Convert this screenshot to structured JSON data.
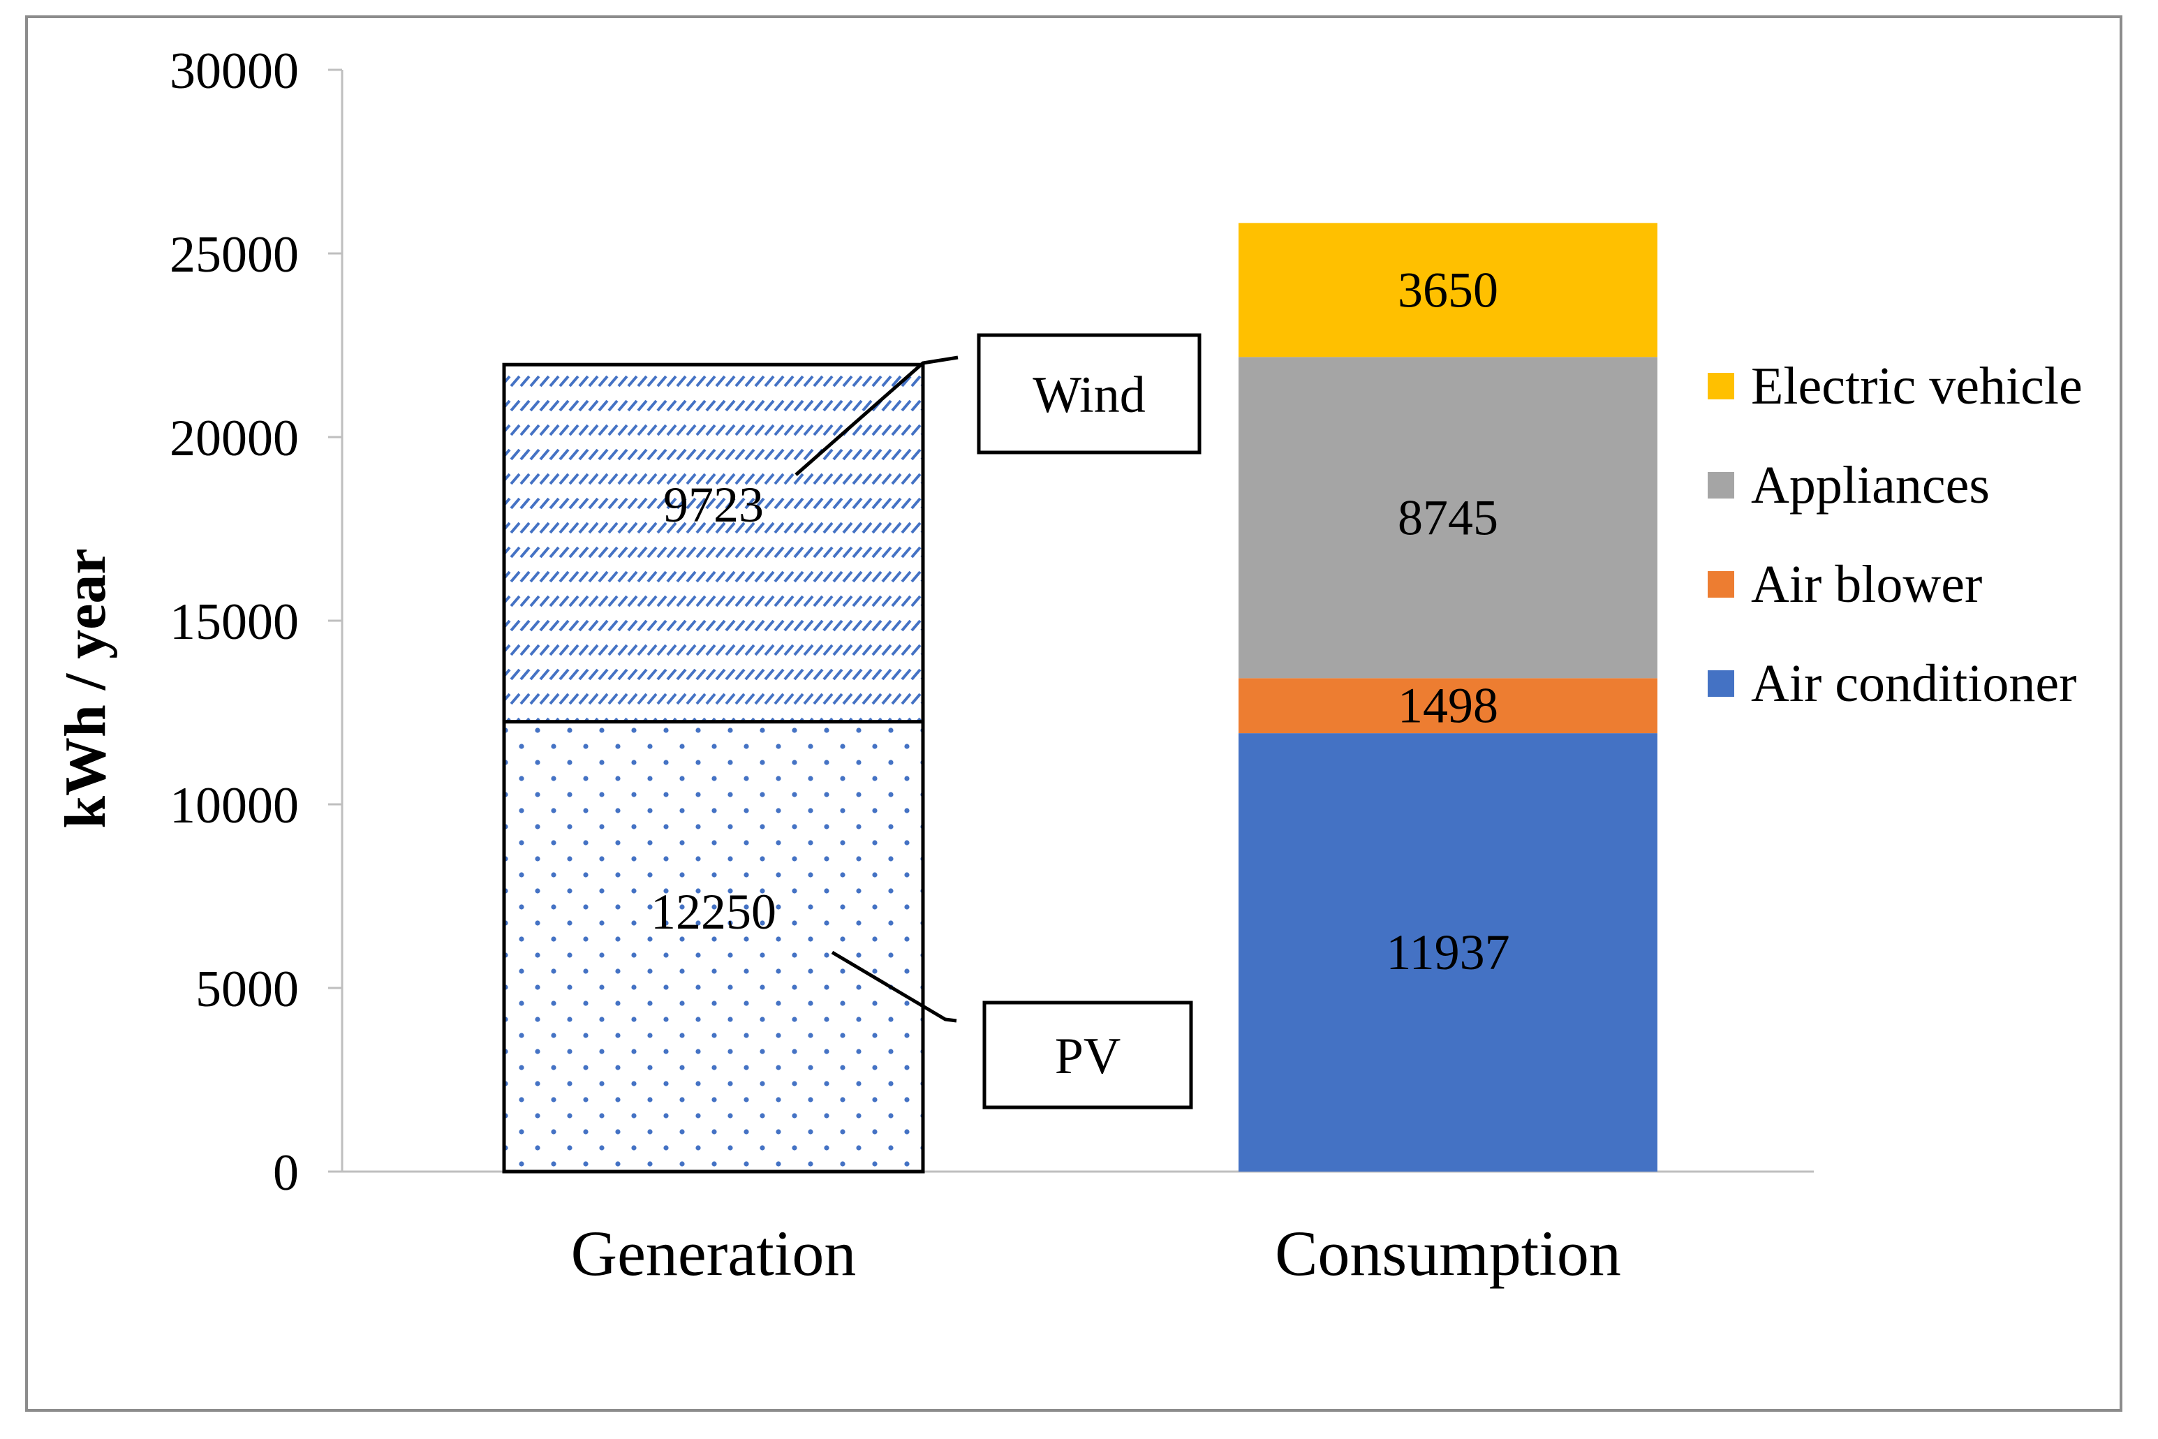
{
  "chart_data": {
    "type": "bar",
    "stacked": true,
    "categories": [
      "Generation",
      "Consumption"
    ],
    "ylabel": "kWh / year",
    "xlabel": "",
    "ylim": [
      0,
      30000
    ],
    "yticks": [
      0,
      5000,
      10000,
      15000,
      20000,
      25000,
      30000
    ],
    "grid": false,
    "legend_position": "right",
    "series": [
      {
        "name": "PV",
        "category": "Generation",
        "value": 12250,
        "color": "#4472c4",
        "fill": "dots",
        "label": "12250",
        "callout": "PV"
      },
      {
        "name": "Wind",
        "category": "Generation",
        "value": 9723,
        "color": "#4472c4",
        "fill": "hatch",
        "label": "9723",
        "callout": "Wind"
      },
      {
        "name": "Air conditioner",
        "category": "Consumption",
        "value": 11937,
        "color": "#4472c4",
        "label": "11937"
      },
      {
        "name": "Air blower",
        "category": "Consumption",
        "value": 1498,
        "color": "#ed7d31",
        "label": "1498"
      },
      {
        "name": "Appliances",
        "category": "Consumption",
        "value": 8745,
        "color": "#a5a5a5",
        "label": "8745"
      },
      {
        "name": "Electric vehicle",
        "category": "Consumption",
        "value": 3650,
        "color": "#ffc000",
        "label": "3650"
      }
    ],
    "legend": [
      "Electric vehicle",
      "Appliances",
      "Air blower",
      "Air conditioner"
    ]
  }
}
